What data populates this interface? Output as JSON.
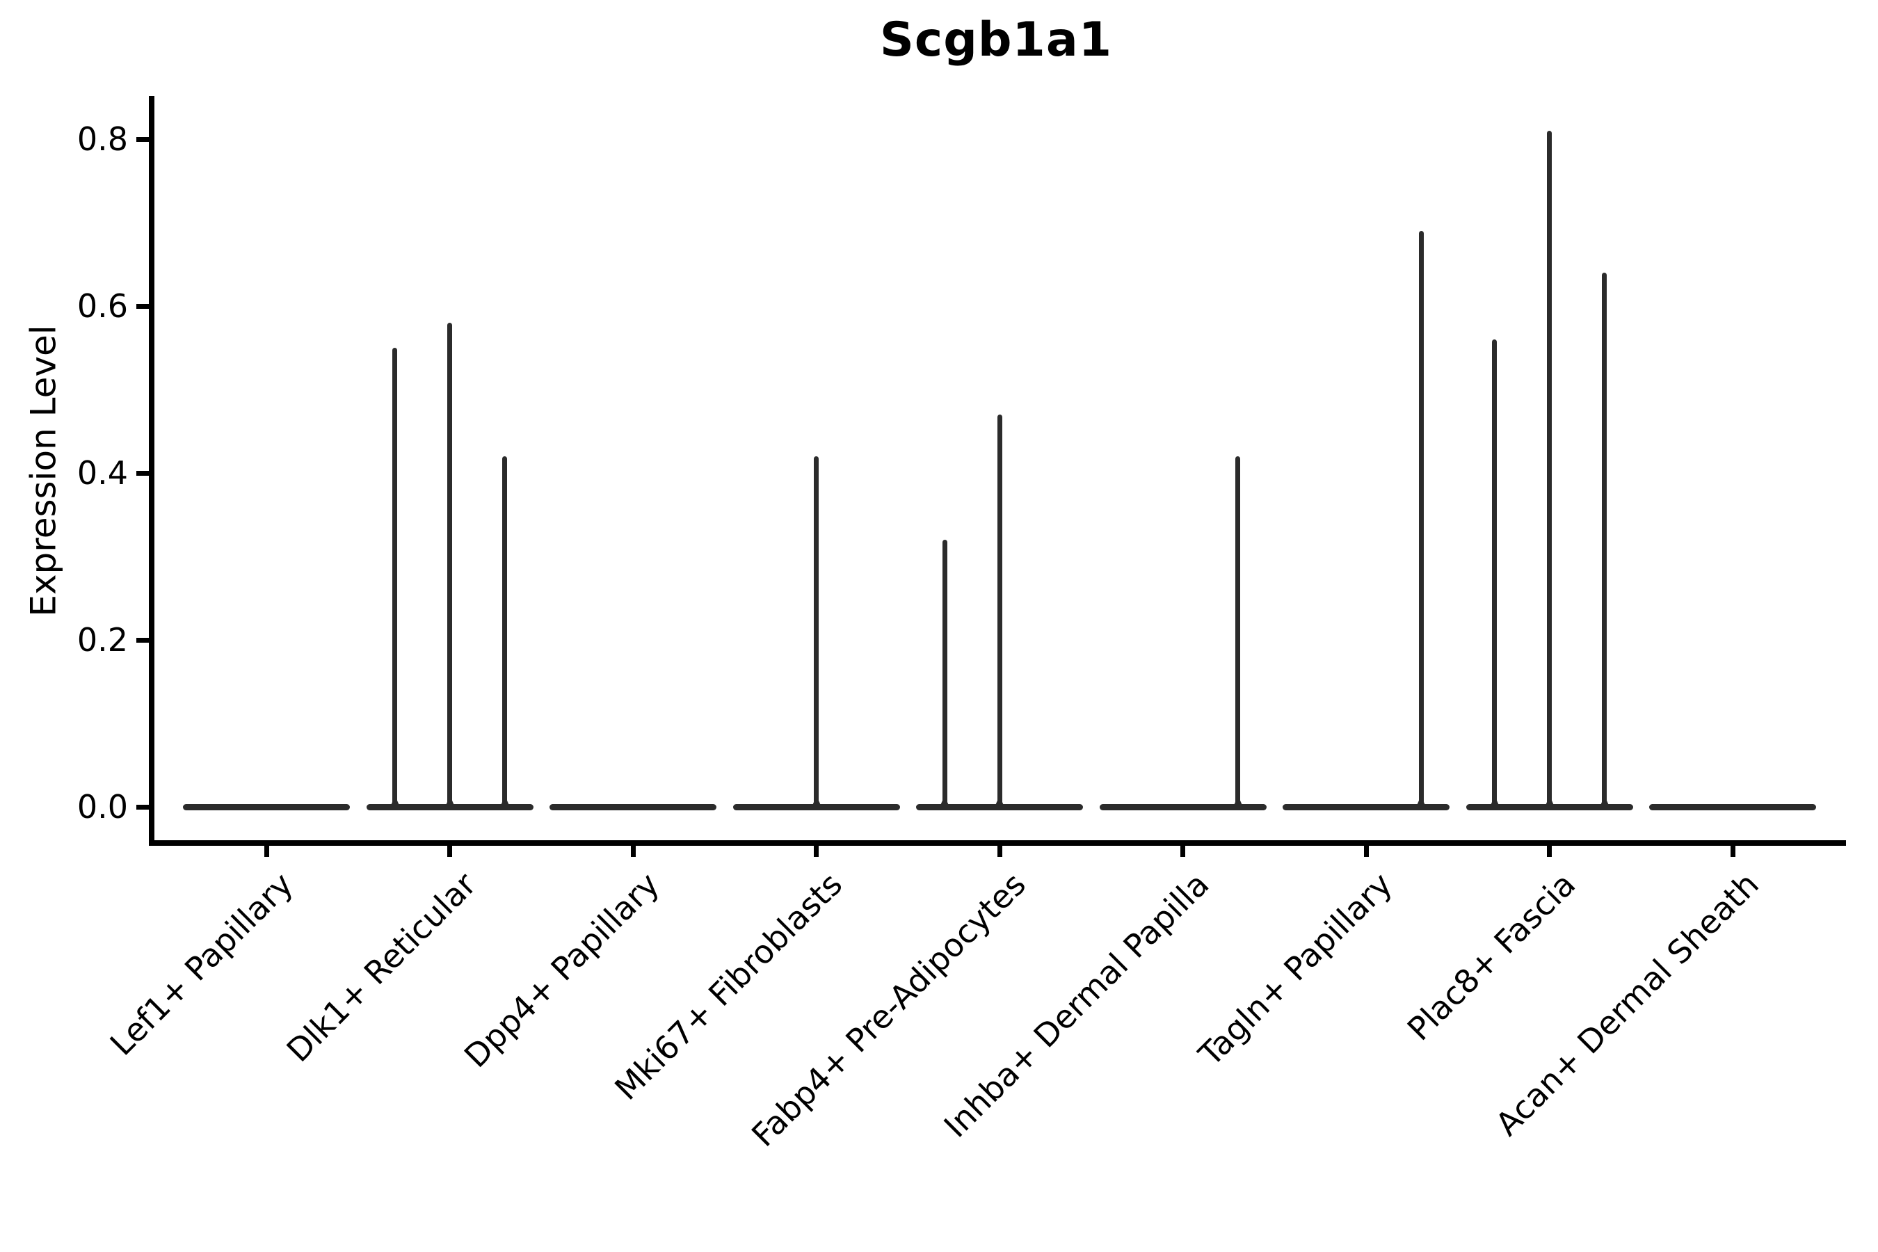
{
  "chart_data": {
    "type": "violin",
    "title": "Scgb1a1",
    "ylabel": "Expression Level",
    "xlabel": "",
    "legend": "none",
    "grid": false,
    "background_color": "#ffffff",
    "violin_color": "#2b2b2b",
    "axis_color": "#000000",
    "ylim": [
      -0.04,
      0.85
    ],
    "yticks": [
      {
        "value": 0.0,
        "label": "0.0"
      },
      {
        "value": 0.2,
        "label": "0.2"
      },
      {
        "value": 0.4,
        "label": "0.4"
      },
      {
        "value": 0.6,
        "label": "0.6"
      },
      {
        "value": 0.8,
        "label": "0.8"
      }
    ],
    "categories": [
      "Lef1+ Papillary",
      "Dlk1+ Reticular",
      "Dpp4+ Papillary",
      "Mki67+ Fibroblasts",
      "Fabp4+ Pre-Adipocytes",
      "Inhba+ Dermal Papilla",
      "Tagln+ Papillary",
      "Plac8+ Fascia",
      "Acan+ Dermal Sheath"
    ],
    "violins": [
      {
        "category": "Lef1+ Papillary",
        "baseline_value": 0.0,
        "spikes": []
      },
      {
        "category": "Dlk1+ Reticular",
        "baseline_value": 0.0,
        "spikes": [
          {
            "slot": -1,
            "peak": 0.55
          },
          {
            "slot": 0,
            "peak": 0.58
          },
          {
            "slot": 1,
            "peak": 0.42
          }
        ]
      },
      {
        "category": "Dpp4+ Papillary",
        "baseline_value": 0.0,
        "spikes": []
      },
      {
        "category": "Mki67+ Fibroblasts",
        "baseline_value": 0.0,
        "spikes": [
          {
            "slot": 0,
            "peak": 0.42
          }
        ]
      },
      {
        "category": "Fabp4+ Pre-Adipocytes",
        "baseline_value": 0.0,
        "spikes": [
          {
            "slot": -1,
            "peak": 0.32
          },
          {
            "slot": 0,
            "peak": 0.47
          }
        ]
      },
      {
        "category": "Inhba+ Dermal Papilla",
        "baseline_value": 0.0,
        "spikes": [
          {
            "slot": 1,
            "peak": 0.42
          }
        ]
      },
      {
        "category": "Tagln+ Papillary",
        "baseline_value": 0.0,
        "spikes": [
          {
            "slot": 1,
            "peak": 0.69
          }
        ]
      },
      {
        "category": "Plac8+ Fascia",
        "baseline_value": 0.0,
        "spikes": [
          {
            "slot": -1,
            "peak": 0.56
          },
          {
            "slot": 0,
            "peak": 0.81
          },
          {
            "slot": 1,
            "peak": 0.64
          }
        ]
      },
      {
        "category": "Acan+ Dermal Sheath",
        "baseline_value": 0.0,
        "spikes": []
      }
    ]
  }
}
